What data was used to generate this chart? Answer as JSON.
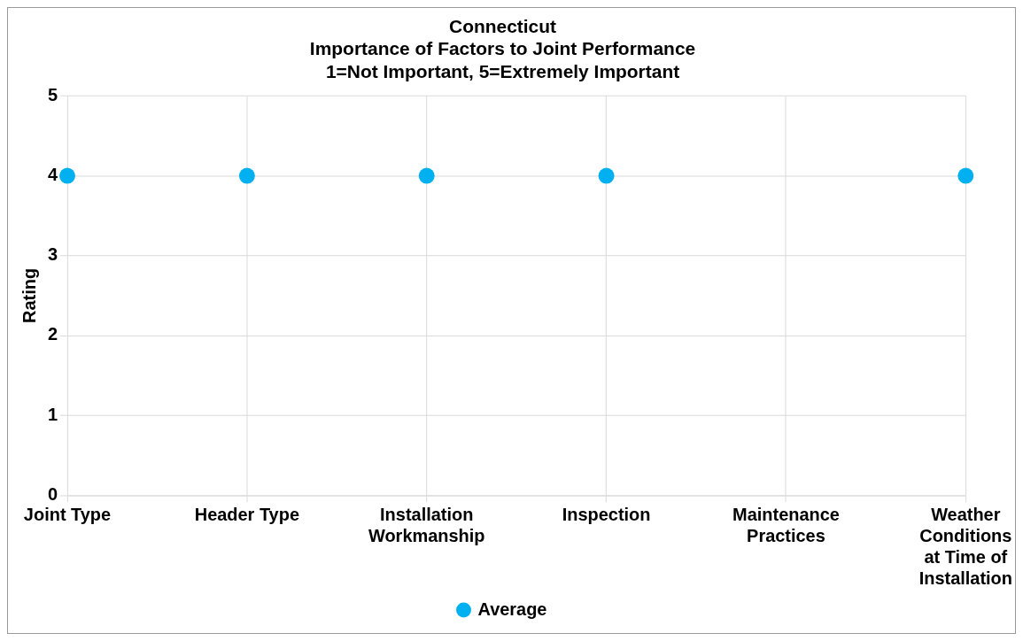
{
  "chart_data": {
    "type": "scatter",
    "title": "Connecticut\nImportance of Factors to Joint Performance\n1=Not Important, 5=Extremely Important",
    "ylabel": "Rating",
    "categories": [
      "Joint Type",
      "Header Type",
      "Installation Workmanship",
      "Inspection",
      "Maintenance Practices",
      "Weather Conditions at Time of Installation"
    ],
    "series": [
      {
        "name": "Average",
        "color": "#00b0f0",
        "values": [
          4,
          4,
          4,
          4,
          null,
          4
        ]
      }
    ],
    "ylim": [
      0,
      5
    ],
    "yticks": [
      0,
      1,
      2,
      3,
      4,
      5
    ],
    "grid": true,
    "legend": "bottom",
    "marker": "circle"
  }
}
